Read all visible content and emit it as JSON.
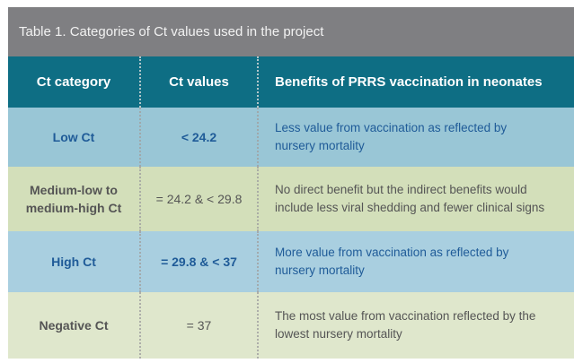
{
  "title": "Table 1. Categories of Ct values used in the project",
  "headers": [
    "Ct category",
    "Ct values",
    "Benefits of PRRS vaccination in neonates"
  ],
  "rows": [
    {
      "category": "Low Ct",
      "values": "< 24.2",
      "benefit": "Less value from vaccination as reflected by nursery mortality"
    },
    {
      "category": "Medium-low to medium-high Ct",
      "values": "= 24.2 & < 29.8",
      "benefit": "No direct benefit but the indirect benefits would include less viral shedding and fewer clinical signs"
    },
    {
      "category": "High Ct",
      "values": "= 29.8 & < 37",
      "benefit": "More value from vaccination as reflected by nursery mortality"
    },
    {
      "category": "Negative Ct",
      "values": "= 37",
      "benefit": "The most value from vaccination reflected by the lowest nursery mortality"
    }
  ],
  "colors": {
    "title_bg": "#7f7f82",
    "header_bg": "#0e6e84",
    "blue_row": "#99c6d6",
    "green_row": "#d3dfba",
    "blue_text": "#1f5b98"
  }
}
